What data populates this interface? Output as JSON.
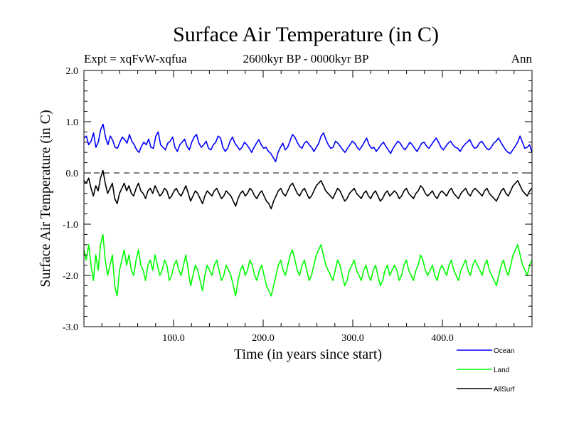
{
  "chart_data": {
    "type": "line",
    "title": "Surface Air Temperature (in C)",
    "subtitle": "2600kyr BP - 0000kyr BP",
    "expt_label": "Expt = xqFvW-xqfua",
    "season_label": "Ann",
    "xlabel": "Time (in years since start)",
    "ylabel": "Surface Air Temperature (in C)",
    "xlim": [
      0,
      500
    ],
    "ylim": [
      -3.0,
      2.0
    ],
    "xticks": [
      100,
      200,
      300,
      400
    ],
    "xtick_labels": [
      "100.0",
      "200.0",
      "300.0",
      "400.0"
    ],
    "yticks": [
      2.0,
      1.0,
      0.0,
      -1.0,
      -2.0,
      -3.0
    ],
    "ytick_labels": [
      "2.0",
      "1.0",
      "0.0",
      "-1.0",
      "-2.0",
      "-3.0"
    ],
    "reference_line": {
      "y": 0.0,
      "style": "dashed"
    },
    "legend_position": "bottom-right",
    "series": [
      {
        "name": "Ocean",
        "color": "#0000ff",
        "values": [
          0.68,
          0.72,
          0.55,
          0.62,
          0.78,
          0.5,
          0.6,
          0.85,
          0.95,
          0.7,
          0.55,
          0.72,
          0.64,
          0.5,
          0.48,
          0.6,
          0.7,
          0.65,
          0.58,
          0.75,
          0.62,
          0.55,
          0.45,
          0.4,
          0.52,
          0.6,
          0.55,
          0.66,
          0.5,
          0.48,
          0.72,
          0.8,
          0.55,
          0.5,
          0.45,
          0.58,
          0.62,
          0.7,
          0.5,
          0.42,
          0.55,
          0.6,
          0.66,
          0.52,
          0.45,
          0.6,
          0.7,
          0.75,
          0.58,
          0.5,
          0.55,
          0.62,
          0.48,
          0.45,
          0.55,
          0.6,
          0.72,
          0.68,
          0.5,
          0.42,
          0.48,
          0.62,
          0.7,
          0.58,
          0.52,
          0.45,
          0.5,
          0.6,
          0.55,
          0.48,
          0.4,
          0.5,
          0.58,
          0.65,
          0.55,
          0.48,
          0.5,
          0.42,
          0.38,
          0.3,
          0.22,
          0.4,
          0.5,
          0.58,
          0.45,
          0.5,
          0.62,
          0.75,
          0.7,
          0.6,
          0.52,
          0.48,
          0.58,
          0.62,
          0.55,
          0.5,
          0.42,
          0.5,
          0.58,
          0.72,
          0.78,
          0.65,
          0.55,
          0.48,
          0.5,
          0.62,
          0.58,
          0.52,
          0.45,
          0.4,
          0.48,
          0.55,
          0.62,
          0.58,
          0.5,
          0.45,
          0.52,
          0.6,
          0.68,
          0.55,
          0.48,
          0.5,
          0.42,
          0.48,
          0.55,
          0.6,
          0.52,
          0.45,
          0.38,
          0.48,
          0.55,
          0.62,
          0.58,
          0.5,
          0.45,
          0.52,
          0.6,
          0.55,
          0.48,
          0.42,
          0.5,
          0.58,
          0.6,
          0.52,
          0.48,
          0.55,
          0.62,
          0.68,
          0.6,
          0.5,
          0.45,
          0.52,
          0.58,
          0.62,
          0.55,
          0.5,
          0.48,
          0.42,
          0.5,
          0.56,
          0.6,
          0.65,
          0.55,
          0.48,
          0.5,
          0.58,
          0.62,
          0.55,
          0.48,
          0.45,
          0.5,
          0.58,
          0.62,
          0.68,
          0.6,
          0.52,
          0.45,
          0.4,
          0.38,
          0.45,
          0.52,
          0.6,
          0.72,
          0.6,
          0.48,
          0.5,
          0.55,
          0.4
        ]
      },
      {
        "name": "Land",
        "color": "#00ff00",
        "values": [
          -1.5,
          -1.7,
          -1.4,
          -1.8,
          -2.1,
          -1.6,
          -1.9,
          -1.4,
          -1.2,
          -1.7,
          -2.0,
          -1.8,
          -1.6,
          -2.2,
          -2.4,
          -1.9,
          -1.7,
          -1.5,
          -1.8,
          -1.6,
          -1.9,
          -2.0,
          -1.7,
          -1.5,
          -1.8,
          -1.9,
          -2.1,
          -1.8,
          -1.7,
          -1.9,
          -1.6,
          -1.8,
          -2.0,
          -1.9,
          -1.7,
          -1.8,
          -2.1,
          -2.0,
          -1.8,
          -1.7,
          -1.9,
          -2.0,
          -1.8,
          -1.6,
          -1.9,
          -2.2,
          -2.0,
          -1.8,
          -1.9,
          -2.1,
          -2.3,
          -2.0,
          -1.8,
          -1.9,
          -2.0,
          -1.8,
          -1.7,
          -1.9,
          -2.1,
          -2.0,
          -1.8,
          -1.9,
          -2.0,
          -2.2,
          -2.4,
          -2.1,
          -1.9,
          -1.8,
          -2.0,
          -1.9,
          -1.7,
          -1.8,
          -2.0,
          -2.1,
          -1.9,
          -1.8,
          -2.0,
          -2.2,
          -2.3,
          -2.4,
          -2.2,
          -2.0,
          -1.8,
          -1.7,
          -1.9,
          -2.0,
          -1.8,
          -1.6,
          -1.5,
          -1.7,
          -1.9,
          -2.0,
          -1.8,
          -1.7,
          -1.9,
          -2.1,
          -2.0,
          -1.8,
          -1.6,
          -1.5,
          -1.4,
          -1.6,
          -1.8,
          -1.9,
          -2.0,
          -2.1,
          -1.9,
          -1.7,
          -1.8,
          -2.0,
          -2.2,
          -2.1,
          -1.9,
          -1.8,
          -1.7,
          -1.9,
          -2.0,
          -2.1,
          -1.9,
          -1.8,
          -2.0,
          -2.1,
          -1.9,
          -1.8,
          -2.0,
          -2.2,
          -2.1,
          -1.9,
          -1.8,
          -2.0,
          -1.9,
          -1.8,
          -1.9,
          -2.1,
          -2.0,
          -1.8,
          -1.7,
          -1.9,
          -2.0,
          -2.1,
          -1.9,
          -1.8,
          -1.6,
          -1.7,
          -1.9,
          -2.0,
          -1.9,
          -1.8,
          -2.0,
          -2.1,
          -1.9,
          -1.8,
          -1.9,
          -2.0,
          -1.8,
          -1.7,
          -1.9,
          -2.0,
          -2.1,
          -1.9,
          -1.8,
          -1.7,
          -1.9,
          -2.0,
          -1.8,
          -1.7,
          -1.8,
          -1.9,
          -2.0,
          -1.8,
          -1.7,
          -1.9,
          -2.0,
          -2.1,
          -2.2,
          -2.0,
          -1.8,
          -1.7,
          -1.9,
          -2.0,
          -1.8,
          -1.6,
          -1.5,
          -1.4,
          -1.6,
          -1.8,
          -1.9,
          -2.0,
          -1.8,
          -1.7
        ]
      },
      {
        "name": "AllSurf",
        "color": "#000000",
        "values": [
          -0.15,
          -0.2,
          -0.1,
          -0.3,
          -0.45,
          -0.25,
          -0.35,
          -0.1,
          0.05,
          -0.2,
          -0.4,
          -0.3,
          -0.2,
          -0.5,
          -0.6,
          -0.4,
          -0.3,
          -0.2,
          -0.35,
          -0.25,
          -0.4,
          -0.45,
          -0.3,
          -0.2,
          -0.35,
          -0.4,
          -0.5,
          -0.35,
          -0.3,
          -0.4,
          -0.25,
          -0.35,
          -0.45,
          -0.4,
          -0.3,
          -0.35,
          -0.5,
          -0.45,
          -0.35,
          -0.3,
          -0.4,
          -0.45,
          -0.35,
          -0.25,
          -0.4,
          -0.55,
          -0.45,
          -0.35,
          -0.4,
          -0.5,
          -0.6,
          -0.45,
          -0.35,
          -0.4,
          -0.45,
          -0.35,
          -0.3,
          -0.4,
          -0.5,
          -0.45,
          -0.35,
          -0.4,
          -0.45,
          -0.55,
          -0.65,
          -0.5,
          -0.4,
          -0.35,
          -0.45,
          -0.4,
          -0.3,
          -0.35,
          -0.45,
          -0.5,
          -0.4,
          -0.35,
          -0.45,
          -0.55,
          -0.6,
          -0.7,
          -0.55,
          -0.45,
          -0.35,
          -0.3,
          -0.4,
          -0.45,
          -0.35,
          -0.25,
          -0.2,
          -0.3,
          -0.4,
          -0.45,
          -0.35,
          -0.3,
          -0.4,
          -0.5,
          -0.45,
          -0.35,
          -0.25,
          -0.2,
          -0.15,
          -0.25,
          -0.35,
          -0.4,
          -0.45,
          -0.5,
          -0.4,
          -0.3,
          -0.35,
          -0.45,
          -0.55,
          -0.5,
          -0.4,
          -0.35,
          -0.3,
          -0.4,
          -0.45,
          -0.5,
          -0.4,
          -0.35,
          -0.45,
          -0.5,
          -0.4,
          -0.35,
          -0.45,
          -0.55,
          -0.5,
          -0.4,
          -0.35,
          -0.45,
          -0.4,
          -0.35,
          -0.4,
          -0.5,
          -0.45,
          -0.35,
          -0.3,
          -0.4,
          -0.45,
          -0.5,
          -0.4,
          -0.35,
          -0.25,
          -0.3,
          -0.4,
          -0.45,
          -0.4,
          -0.35,
          -0.45,
          -0.5,
          -0.4,
          -0.35,
          -0.4,
          -0.45,
          -0.35,
          -0.3,
          -0.4,
          -0.45,
          -0.5,
          -0.4,
          -0.35,
          -0.3,
          -0.4,
          -0.45,
          -0.35,
          -0.3,
          -0.35,
          -0.4,
          -0.45,
          -0.35,
          -0.3,
          -0.4,
          -0.45,
          -0.5,
          -0.55,
          -0.45,
          -0.35,
          -0.3,
          -0.4,
          -0.45,
          -0.35,
          -0.25,
          -0.2,
          -0.15,
          -0.25,
          -0.35,
          -0.4,
          -0.45,
          -0.35,
          -0.3
        ]
      }
    ]
  }
}
